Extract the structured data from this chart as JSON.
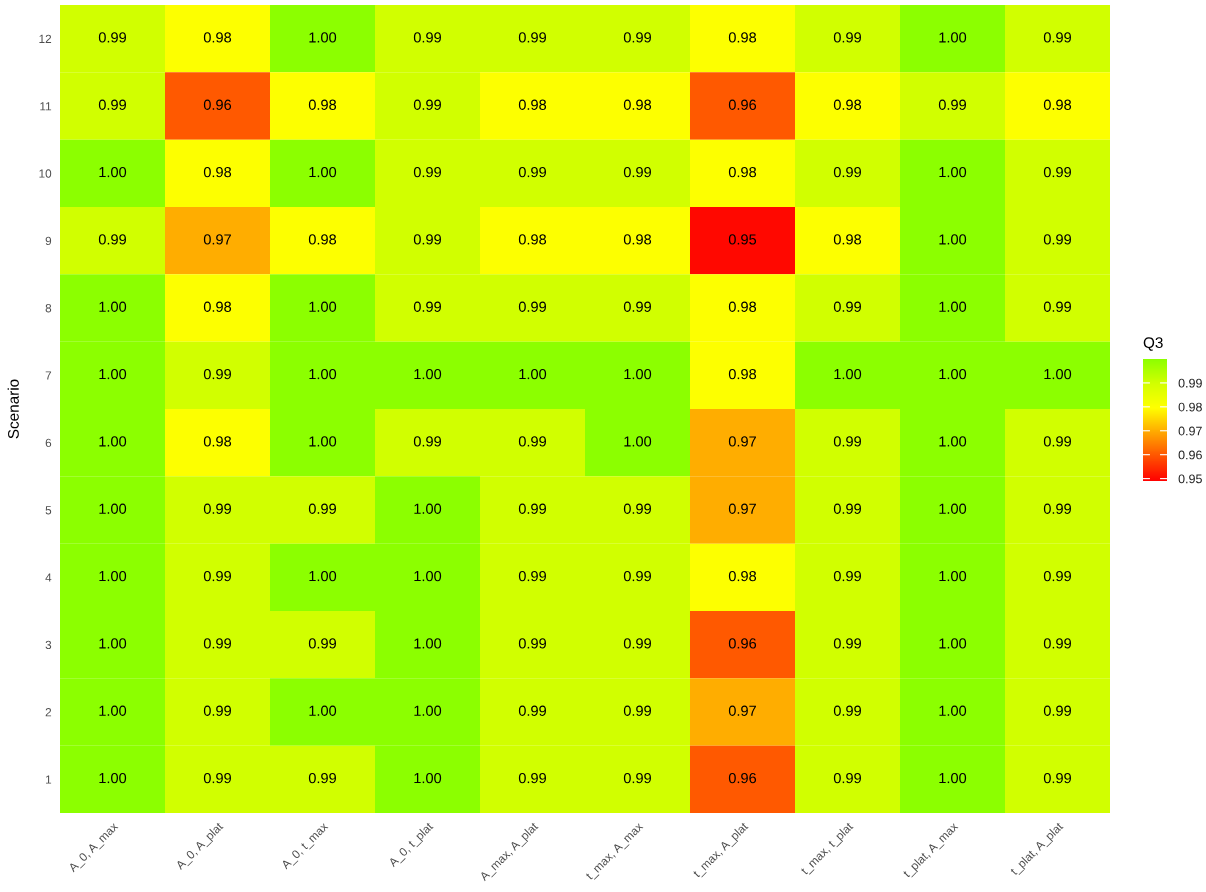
{
  "chart_data": {
    "type": "heatmap",
    "ylabel": "Scenario",
    "clabel": "Q3",
    "categories": [
      "A_0, A_max",
      "A_0, A_plat",
      "A_0, t_max",
      "A_0, t_plat",
      "A_max, A_plat",
      "t_max, A_max",
      "t_max, A_plat",
      "t_max, t_plat",
      "t_plat, A_max",
      "t_plat, A_plat"
    ],
    "y_categories": [
      "12",
      "11",
      "10",
      "9",
      "8",
      "7",
      "6",
      "5",
      "4",
      "3",
      "2",
      "1"
    ],
    "cells": [
      [
        0.99,
        0.98,
        1.0,
        0.99,
        0.99,
        0.99,
        0.98,
        0.99,
        1.0,
        0.99
      ],
      [
        0.99,
        0.96,
        0.98,
        0.99,
        0.98,
        0.98,
        0.96,
        0.98,
        0.99,
        0.98
      ],
      [
        1.0,
        0.98,
        1.0,
        0.99,
        0.99,
        0.99,
        0.98,
        0.99,
        1.0,
        0.99
      ],
      [
        0.99,
        0.97,
        0.98,
        0.99,
        0.98,
        0.98,
        0.95,
        0.98,
        1.0,
        0.99
      ],
      [
        1.0,
        0.98,
        1.0,
        0.99,
        0.99,
        0.99,
        0.98,
        0.99,
        1.0,
        0.99
      ],
      [
        1.0,
        0.99,
        1.0,
        1.0,
        1.0,
        1.0,
        0.98,
        1.0,
        1.0,
        1.0
      ],
      [
        1.0,
        0.98,
        1.0,
        0.99,
        0.99,
        1.0,
        0.97,
        0.99,
        1.0,
        0.99
      ],
      [
        1.0,
        0.99,
        0.99,
        1.0,
        0.99,
        0.99,
        0.97,
        0.99,
        1.0,
        0.99
      ],
      [
        1.0,
        0.99,
        1.0,
        1.0,
        0.99,
        0.99,
        0.98,
        0.99,
        1.0,
        0.99
      ],
      [
        1.0,
        0.99,
        0.99,
        1.0,
        0.99,
        0.99,
        0.96,
        0.99,
        1.0,
        0.99
      ],
      [
        1.0,
        0.99,
        1.0,
        1.0,
        0.99,
        0.99,
        0.97,
        0.99,
        1.0,
        0.99
      ],
      [
        1.0,
        0.99,
        0.99,
        1.0,
        0.99,
        0.99,
        0.96,
        0.99,
        1.0,
        0.99
      ]
    ],
    "cell_labels": [
      [
        "0.99",
        "0.98",
        "1.00",
        "0.99",
        "0.99",
        "0.99",
        "0.98",
        "0.99",
        "1.00",
        "0.99"
      ],
      [
        "0.99",
        "0.96",
        "0.98",
        "0.99",
        "0.98",
        "0.98",
        "0.96",
        "0.98",
        "0.99",
        "0.98"
      ],
      [
        "1.00",
        "0.98",
        "1.00",
        "0.99",
        "0.99",
        "0.99",
        "0.98",
        "0.99",
        "1.00",
        "0.99"
      ],
      [
        "0.99",
        "0.97",
        "0.98",
        "0.99",
        "0.98",
        "0.98",
        "0.95",
        "0.98",
        "1.00",
        "0.99"
      ],
      [
        "1.00",
        "0.98",
        "1.00",
        "0.99",
        "0.99",
        "0.99",
        "0.98",
        "0.99",
        "1.00",
        "0.99"
      ],
      [
        "1.00",
        "0.99",
        "1.00",
        "1.00",
        "1.00",
        "1.00",
        "0.98",
        "1.00",
        "1.00",
        "1.00"
      ],
      [
        "1.00",
        "0.98",
        "1.00",
        "0.99",
        "0.99",
        "1.00",
        "0.97",
        "0.99",
        "1.00",
        "0.99"
      ],
      [
        "1.00",
        "0.99",
        "0.99",
        "1.00",
        "0.99",
        "0.99",
        "0.97",
        "0.99",
        "1.00",
        "0.99"
      ],
      [
        "1.00",
        "0.99",
        "1.00",
        "1.00",
        "0.99",
        "0.99",
        "0.98",
        "0.99",
        "1.00",
        "0.99"
      ],
      [
        "1.00",
        "0.99",
        "0.99",
        "1.00",
        "0.99",
        "0.99",
        "0.96",
        "0.99",
        "1.00",
        "0.99"
      ],
      [
        "1.00",
        "0.99",
        "1.00",
        "1.00",
        "0.99",
        "0.99",
        "0.97",
        "0.99",
        "1.00",
        "0.99"
      ],
      [
        "1.00",
        "0.99",
        "0.99",
        "1.00",
        "0.99",
        "0.99",
        "0.96",
        "0.99",
        "1.00",
        "0.99"
      ]
    ],
    "clim": [
      0.949,
      1.0
    ],
    "cticks": [
      0.95,
      0.96,
      0.97,
      0.98,
      0.99
    ]
  }
}
